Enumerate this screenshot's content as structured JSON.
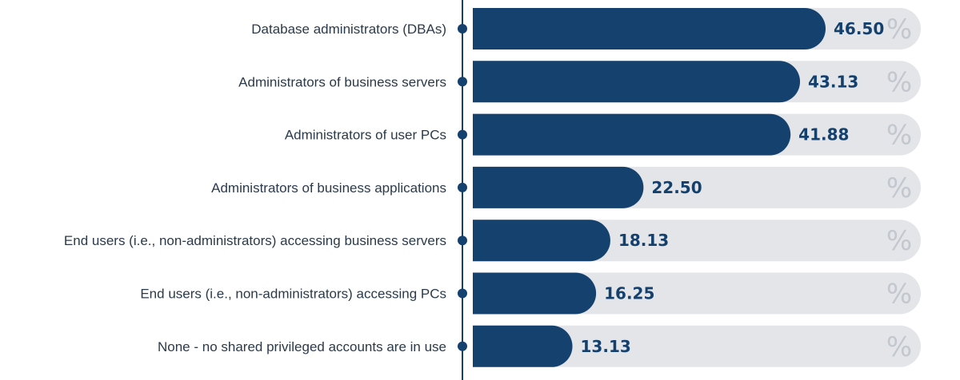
{
  "colors": {
    "bar": "#15416f",
    "track": "#e3e5e9",
    "axis": "#15416f",
    "value_text": "#14406e",
    "percent_text": "#c3c8cf",
    "label_text": "#2b3a4a"
  },
  "chart_data": {
    "type": "bar",
    "orientation": "horizontal",
    "categories": [
      "Database administrators (DBAs)",
      "Administrators of business servers",
      "Administrators of user PCs",
      "Administrators of business applications",
      "End users (i.e., non-administrators) accessing business servers",
      "End users (i.e., non-administrators) accessing PCs",
      "None - no shared privileged accounts are in use"
    ],
    "values": [
      46.5,
      43.13,
      41.88,
      22.5,
      18.13,
      16.25,
      13.13
    ],
    "value_labels": [
      "46.50",
      "43.13",
      "41.88",
      "22.50",
      "18.13",
      "16.25",
      "13.13"
    ],
    "unit_symbol": "%",
    "xlim": [
      0,
      50
    ],
    "grid": false,
    "legend": "none"
  }
}
